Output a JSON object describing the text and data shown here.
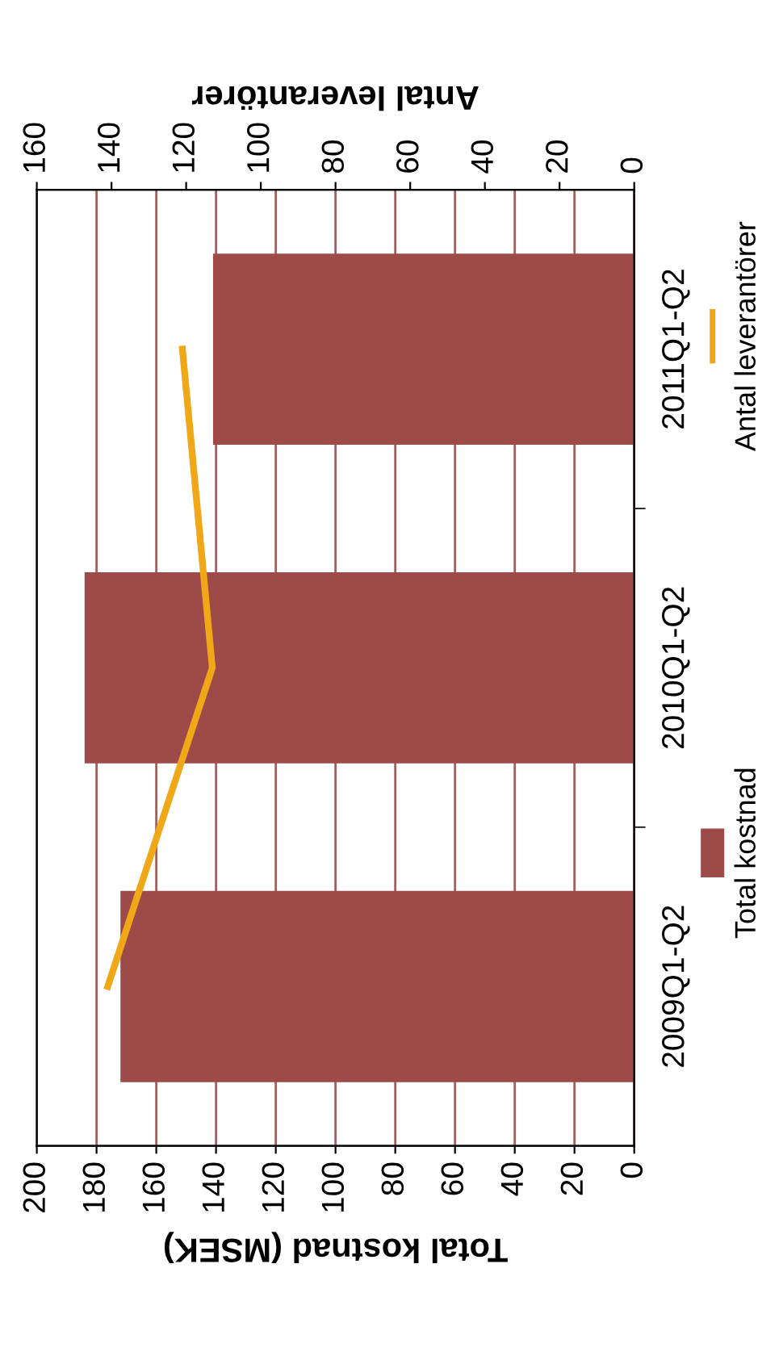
{
  "chart_data": {
    "type": "bar",
    "orientation": "horizontal",
    "categories": [
      "2011Q1-Q2",
      "2010Q1-Q2",
      "2009Q1-Q2"
    ],
    "series": [
      {
        "name": "Total kostnad",
        "type": "bar",
        "color": "#9e4a48",
        "values": [
          141,
          184,
          172
        ]
      },
      {
        "name": "Antal leverantörer",
        "type": "line",
        "axis": "x2",
        "color": "#f0a818",
        "values": [
          121,
          113,
          141
        ]
      }
    ],
    "xlabel": "Total kostnad (MSEK)",
    "x2label": "Antal leverantörer",
    "xlim": [
      200,
      0
    ],
    "xticks": [
      0,
      20,
      40,
      60,
      80,
      100,
      120,
      140,
      160,
      180,
      200
    ],
    "x2lim": [
      160,
      0
    ],
    "x2ticks": [
      0,
      20,
      40,
      60,
      80,
      100,
      120,
      140,
      160
    ],
    "grid": "x",
    "legend": "right",
    "marker": "none",
    "line_style": "solid"
  }
}
